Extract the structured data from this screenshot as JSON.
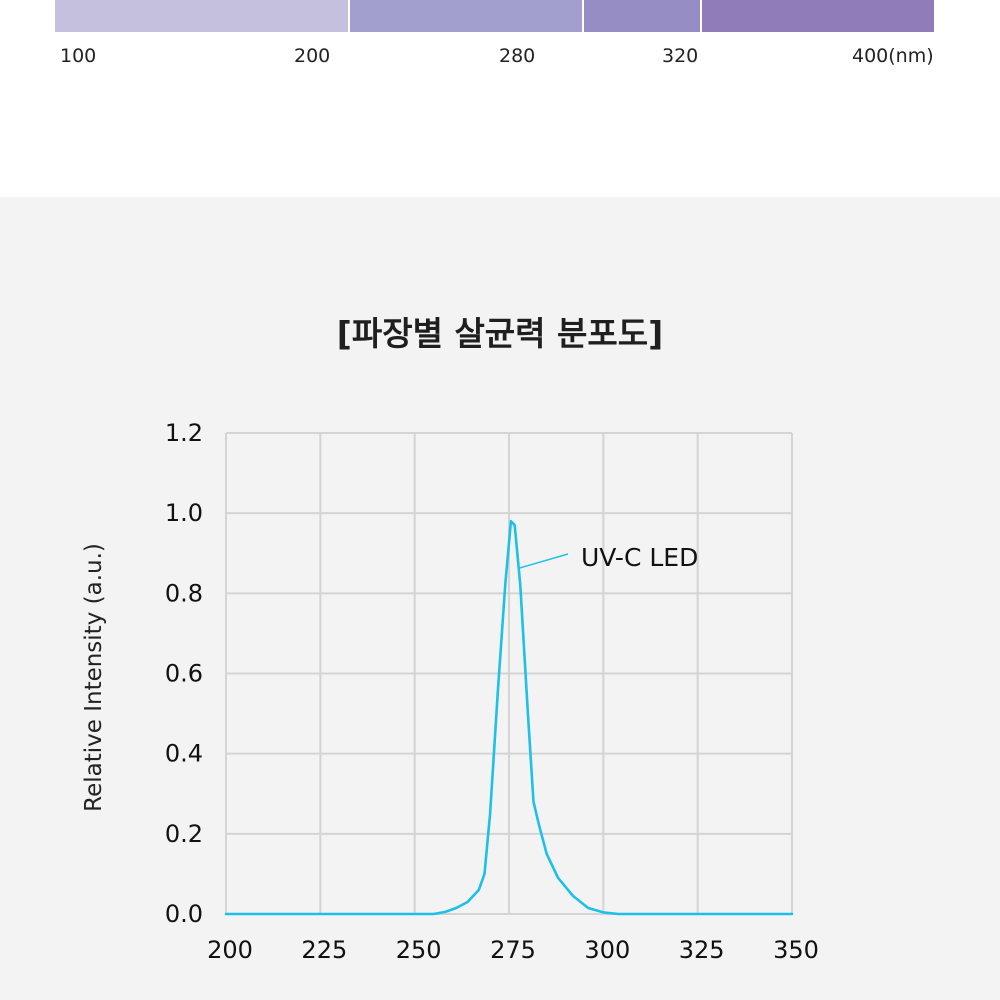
{
  "spectrum": {
    "segments": [
      {
        "from": 100,
        "to": 200,
        "color": "#c4c0de"
      },
      {
        "from": 200,
        "to": 280,
        "color": "#a29fcf"
      },
      {
        "from": 280,
        "to": 320,
        "color": "#968dc4"
      },
      {
        "from": 320,
        "to": 400,
        "color": "#8f7cb8"
      }
    ],
    "labels": [
      "100",
      "200",
      "280",
      "320",
      "400(nm)"
    ]
  },
  "chart_data": {
    "type": "line",
    "title": "[파장별 살균력 분포도]",
    "xlabel": "",
    "ylabel": "Relative Intensity (a.u.)",
    "xlim": [
      200,
      350
    ],
    "ylim": [
      0,
      1.2
    ],
    "x_ticks": [
      "200",
      "225",
      "250",
      "275",
      "300",
      "325",
      "350"
    ],
    "y_ticks": [
      "0.0",
      "0.2",
      "0.4",
      "0.6",
      "0.8",
      "1.0",
      "1.2"
    ],
    "grid": true,
    "line_color": "#1ec0e8",
    "series": [
      {
        "name": "UV-C LED",
        "x": [
          200,
          250,
          255,
          258,
          261,
          264,
          267,
          268.5,
          270,
          272,
          274,
          275.5,
          276.5,
          278,
          280,
          281.5,
          283,
          285,
          288,
          292,
          296,
          300,
          304,
          310,
          350
        ],
        "values": [
          0,
          0,
          0,
          0.005,
          0.015,
          0.03,
          0.06,
          0.1,
          0.25,
          0.55,
          0.82,
          0.98,
          0.97,
          0.82,
          0.5,
          0.28,
          0.22,
          0.15,
          0.09,
          0.045,
          0.015,
          0.004,
          0,
          0,
          0
        ]
      }
    ],
    "annotation": {
      "text": "UV-C LED",
      "target": [
        277,
        0.86
      ]
    }
  }
}
